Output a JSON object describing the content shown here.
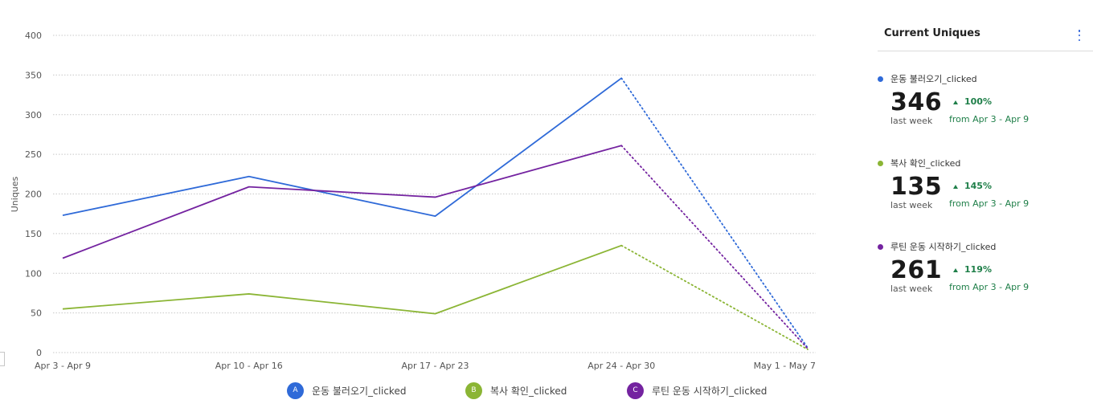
{
  "colors": {
    "A": "#2f6ad8",
    "B": "#8bb535",
    "C": "#7423a0",
    "up": "#1f7f49"
  },
  "chart_data": {
    "type": "line",
    "title": "",
    "xlabel": "",
    "ylabel": "Uniques",
    "categories": [
      "Apr 3 - Apr 9",
      "Apr 10 - Apr 16",
      "Apr 17 - Apr 23",
      "Apr 24 - Apr 30",
      "May 1 - May 7"
    ],
    "ylim": [
      0,
      400
    ],
    "yticks": [
      0,
      50,
      100,
      150,
      200,
      250,
      300,
      350,
      400
    ],
    "grid": true,
    "partial_last_period": true,
    "series": [
      {
        "letter": "A",
        "name": "운동 불러오기_clicked",
        "color": "#2f6ad8",
        "values": [
          173,
          222,
          172,
          346,
          6
        ]
      },
      {
        "letter": "B",
        "name": "복사 확인_clicked",
        "color": "#8bb535",
        "values": [
          55,
          74,
          49,
          135,
          4
        ]
      },
      {
        "letter": "C",
        "name": "루틴 운동 시작하기_clicked",
        "color": "#7423a0",
        "values": [
          119,
          209,
          196,
          261,
          5
        ]
      }
    ]
  },
  "legend": [
    {
      "letter": "A",
      "label": "운동 불러오기_clicked"
    },
    {
      "letter": "B",
      "label": "복사 확인_clicked"
    },
    {
      "letter": "C",
      "label": "루틴 운동 시작하기_clicked"
    }
  ],
  "panel": {
    "title": "Current Uniques",
    "metrics": [
      {
        "name": "운동 불러오기_clicked",
        "value": "346",
        "period": "last week",
        "change": "100%",
        "compare": "from Apr 3 - Apr 9"
      },
      {
        "name": "복사 확인_clicked",
        "value": "135",
        "period": "last week",
        "change": "145%",
        "compare": "from Apr 3 - Apr 9"
      },
      {
        "name": "루틴 운동 시작하기_clicked",
        "value": "261",
        "period": "last week",
        "change": "119%",
        "compare": "from Apr 3 - Apr 9"
      }
    ]
  }
}
